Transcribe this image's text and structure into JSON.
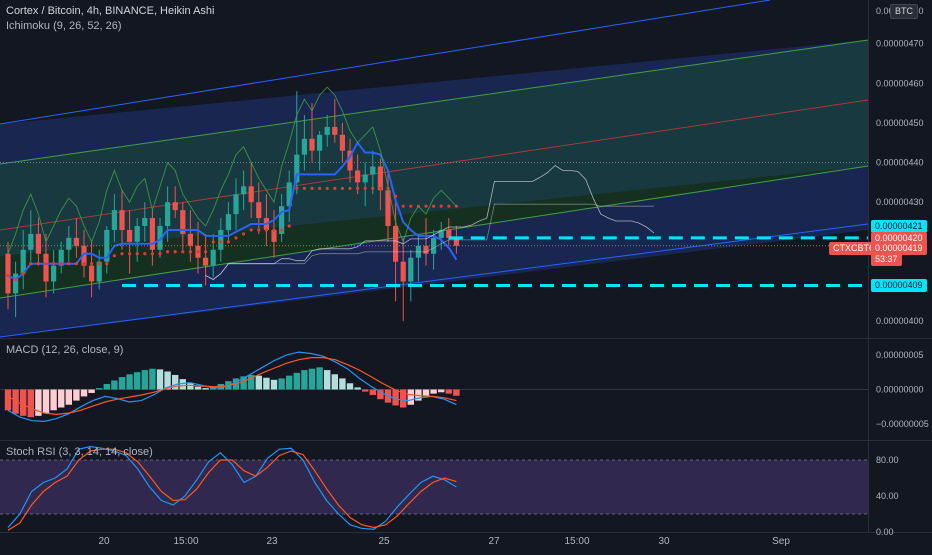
{
  "header": {
    "title": "Cortex / Bitcoin, 4h, BINANCE, Heikin Ashi",
    "indicator": "Ichimoku (9, 26, 52, 26)",
    "currency": "BTC"
  },
  "macd": {
    "label": "MACD (12, 26, close, 9)"
  },
  "rsi": {
    "label": "Stoch RSI (3, 3, 14, 14, close)"
  },
  "price_axis": {
    "top_label": "0.00000480",
    "ticks": [
      "0.00000470",
      "0.00000460",
      "0.00000450",
      "0.00000440",
      "0.00000430",
      "0.00000400"
    ]
  },
  "macd_axis": {
    "ticks": [
      "0.00000005",
      "0.00000000",
      "−0.00000005"
    ]
  },
  "rsi_axis": {
    "ticks": [
      "80.00",
      "40.00",
      "0.00"
    ]
  },
  "badges": {
    "level_upper": "0.00000421",
    "last_price": "0.00000420",
    "symbol": "CTXCBTC",
    "current_price": "0.00000419",
    "countdown": "53:37",
    "level_lower": "0.00000409"
  },
  "x_axis": {
    "labels": [
      "20",
      "15:00",
      "23",
      "25",
      "27",
      "15:00",
      "30",
      "Sep"
    ]
  },
  "colors": {
    "bg": "#131722",
    "up": "#26a69a",
    "down": "#ef5350",
    "cyan": "#00e5ff",
    "tenkan": "#2962ff",
    "kijun": "#e53935",
    "chikou": "#43a047",
    "macd_line": "#2196f3",
    "signal_line": "#ff5722",
    "rsi_k": "#2196f3",
    "rsi_d": "#ff5722",
    "rsi_band": "#7e57c2"
  },
  "chart_data": [
    {
      "type": "candlestick",
      "title": "Cortex / Bitcoin, 4h, BINANCE, Heikin Ashi",
      "y_unit": "BTC",
      "ylim": [
        3.96e-06,
        4.81e-06
      ],
      "x_labels": [
        "20",
        "15:00",
        "23",
        "25",
        "27",
        "15:00",
        "30",
        "Sep"
      ],
      "candles": [
        {
          "o": 4.17,
          "h": 4.2,
          "l": 4.03,
          "c": 4.07
        },
        {
          "o": 4.07,
          "h": 4.15,
          "l": 4.01,
          "c": 4.12
        },
        {
          "o": 4.12,
          "h": 4.23,
          "l": 4.08,
          "c": 4.18
        },
        {
          "o": 4.18,
          "h": 4.28,
          "l": 4.15,
          "c": 4.22
        },
        {
          "o": 4.22,
          "h": 4.26,
          "l": 4.14,
          "c": 4.17
        },
        {
          "o": 4.17,
          "h": 4.22,
          "l": 4.06,
          "c": 4.1
        },
        {
          "o": 4.1,
          "h": 4.18,
          "l": 4.07,
          "c": 4.14
        },
        {
          "o": 4.14,
          "h": 4.2,
          "l": 4.12,
          "c": 4.18
        },
        {
          "o": 4.18,
          "h": 4.24,
          "l": 4.15,
          "c": 4.21
        },
        {
          "o": 4.21,
          "h": 4.26,
          "l": 4.16,
          "c": 4.19
        },
        {
          "o": 4.19,
          "h": 4.23,
          "l": 4.11,
          "c": 4.14
        },
        {
          "o": 4.14,
          "h": 4.2,
          "l": 4.06,
          "c": 4.1
        },
        {
          "o": 4.1,
          "h": 4.18,
          "l": 4.08,
          "c": 4.15
        },
        {
          "o": 4.15,
          "h": 4.24,
          "l": 4.12,
          "c": 4.23
        },
        {
          "o": 4.23,
          "h": 4.32,
          "l": 4.2,
          "c": 4.28
        },
        {
          "o": 4.28,
          "h": 4.33,
          "l": 4.18,
          "c": 4.23
        },
        {
          "o": 4.23,
          "h": 4.28,
          "l": 4.12,
          "c": 4.2
        },
        {
          "o": 4.2,
          "h": 4.26,
          "l": 4.15,
          "c": 4.24
        },
        {
          "o": 4.24,
          "h": 4.3,
          "l": 4.2,
          "c": 4.26
        },
        {
          "o": 4.26,
          "h": 4.28,
          "l": 4.14,
          "c": 4.18
        },
        {
          "o": 4.18,
          "h": 4.26,
          "l": 4.16,
          "c": 4.24
        },
        {
          "o": 4.24,
          "h": 4.34,
          "l": 4.2,
          "c": 4.3
        },
        {
          "o": 4.3,
          "h": 4.34,
          "l": 4.26,
          "c": 4.28
        },
        {
          "o": 4.28,
          "h": 4.3,
          "l": 4.18,
          "c": 4.22
        },
        {
          "o": 4.22,
          "h": 4.28,
          "l": 4.15,
          "c": 4.19
        },
        {
          "o": 4.19,
          "h": 4.25,
          "l": 4.12,
          "c": 4.16
        },
        {
          "o": 4.16,
          "h": 4.22,
          "l": 4.09,
          "c": 4.14
        },
        {
          "o": 4.14,
          "h": 4.22,
          "l": 4.11,
          "c": 4.18
        },
        {
          "o": 4.18,
          "h": 4.26,
          "l": 4.15,
          "c": 4.23
        },
        {
          "o": 4.23,
          "h": 4.3,
          "l": 4.2,
          "c": 4.27
        },
        {
          "o": 4.27,
          "h": 4.36,
          "l": 4.23,
          "c": 4.32
        },
        {
          "o": 4.32,
          "h": 4.38,
          "l": 4.28,
          "c": 4.34
        },
        {
          "o": 4.34,
          "h": 4.4,
          "l": 4.26,
          "c": 4.3
        },
        {
          "o": 4.3,
          "h": 4.35,
          "l": 4.22,
          "c": 4.26
        },
        {
          "o": 4.26,
          "h": 4.32,
          "l": 4.19,
          "c": 4.23
        },
        {
          "o": 4.23,
          "h": 4.28,
          "l": 4.16,
          "c": 4.2
        },
        {
          "o": 4.22,
          "h": 4.32,
          "l": 4.2,
          "c": 4.29
        },
        {
          "o": 4.29,
          "h": 4.38,
          "l": 4.25,
          "c": 4.35
        },
        {
          "o": 4.35,
          "h": 4.58,
          "l": 4.32,
          "c": 4.42
        },
        {
          "o": 4.42,
          "h": 4.52,
          "l": 4.38,
          "c": 4.46
        },
        {
          "o": 4.46,
          "h": 4.55,
          "l": 4.4,
          "c": 4.43
        },
        {
          "o": 4.43,
          "h": 4.48,
          "l": 4.38,
          "c": 4.47
        },
        {
          "o": 4.47,
          "h": 4.52,
          "l": 4.44,
          "c": 4.49
        },
        {
          "o": 4.49,
          "h": 4.56,
          "l": 4.45,
          "c": 4.47
        },
        {
          "o": 4.47,
          "h": 4.5,
          "l": 4.4,
          "c": 4.43
        },
        {
          "o": 4.43,
          "h": 4.46,
          "l": 4.35,
          "c": 4.38
        },
        {
          "o": 4.38,
          "h": 4.42,
          "l": 4.32,
          "c": 4.35
        },
        {
          "o": 4.35,
          "h": 4.4,
          "l": 4.29,
          "c": 4.37
        },
        {
          "o": 4.37,
          "h": 4.43,
          "l": 4.32,
          "c": 4.39
        },
        {
          "o": 4.39,
          "h": 4.41,
          "l": 4.28,
          "c": 4.33
        },
        {
          "o": 4.33,
          "h": 4.37,
          "l": 4.2,
          "c": 4.24
        },
        {
          "o": 4.24,
          "h": 4.31,
          "l": 4.05,
          "c": 4.15
        },
        {
          "o": 4.15,
          "h": 4.21,
          "l": 4.0,
          "c": 4.1
        },
        {
          "o": 4.1,
          "h": 4.18,
          "l": 4.05,
          "c": 4.16
        },
        {
          "o": 4.16,
          "h": 4.22,
          "l": 4.1,
          "c": 4.19
        },
        {
          "o": 4.19,
          "h": 4.26,
          "l": 4.14,
          "c": 4.17
        },
        {
          "o": 4.17,
          "h": 4.23,
          "l": 4.13,
          "c": 4.21
        },
        {
          "o": 4.21,
          "h": 4.25,
          "l": 4.18,
          "c": 4.23
        },
        {
          "o": 4.23,
          "h": 4.26,
          "l": 4.19,
          "c": 4.21
        },
        {
          "o": 4.21,
          "h": 4.24,
          "l": 4.17,
          "c": 4.19
        }
      ],
      "horizontal_levels": [
        4.21e-06,
        4.09e-06
      ]
    },
    {
      "type": "bar",
      "title": "MACD (12, 26, close, 9)",
      "ylim": [
        -7e-08,
        7e-08
      ],
      "histogram": [
        -3,
        -3.5,
        -3.8,
        -4,
        -3.8,
        -3.4,
        -3,
        -2.6,
        -2.2,
        -1.6,
        -1,
        -0.5,
        0.2,
        0.8,
        1.3,
        1.8,
        2.2,
        2.5,
        2.8,
        3,
        2.9,
        2.6,
        2.1,
        1.5,
        0.9,
        0.4,
        0.2,
        0.4,
        0.8,
        1.2,
        1.6,
        1.9,
        2.1,
        2.0,
        1.7,
        1.4,
        1.6,
        2.0,
        2.4,
        2.8,
        3.0,
        3.2,
        2.8,
        2.2,
        1.6,
        0.9,
        0.3,
        -0.3,
        -0.8,
        -1.4,
        -1.9,
        -2.3,
        -2.6,
        -2.2,
        -1.6,
        -1.0,
        -0.6,
        -0.4,
        -0.6,
        -0.9
      ],
      "macd_line": [
        -3,
        -4,
        -4.5,
        -4.6,
        -4.2,
        -3.5,
        -2.5,
        -1.6,
        -1.0,
        -1.3,
        -1.8,
        -1.6,
        -0.8,
        0.2,
        0.8,
        1.0,
        0.6,
        0.2,
        0.4,
        1.2,
        2.2,
        3.2,
        4.2,
        5.0,
        5.4,
        5.2,
        4.8,
        4.0,
        3.0,
        1.6,
        0.4,
        -0.6,
        -1.4,
        -1.6,
        -1.2,
        -1.0,
        -1.4,
        -2.2
      ],
      "signal_line": [
        -1,
        -2,
        -2.8,
        -3.4,
        -3.6,
        -3.4,
        -3.0,
        -2.4,
        -1.8,
        -1.4,
        -1.1,
        -0.8,
        -0.4,
        0.1,
        0.5,
        0.6,
        0.5,
        0.4,
        0.5,
        0.9,
        1.6,
        2.4,
        3.1,
        3.8,
        4.3,
        4.6,
        4.6,
        4.3,
        3.6,
        2.8,
        1.8,
        0.8,
        -0.1,
        -0.7,
        -0.9,
        -1.0,
        -1.2,
        -1.6
      ]
    },
    {
      "type": "line",
      "title": "Stoch RSI (3, 3, 14, 14, close)",
      "ylim": [
        0,
        100
      ],
      "band": [
        20,
        80
      ],
      "series": [
        {
          "values": [
            5,
            20,
            45,
            55,
            60,
            70,
            92,
            95,
            93,
            90,
            85,
            70,
            50,
            35,
            30,
            40,
            58,
            78,
            88,
            75,
            55,
            62,
            82,
            92,
            93,
            80,
            55,
            35,
            20,
            8,
            4,
            3,
            12,
            28,
            42,
            55,
            62,
            58,
            50
          ]
        },
        {
          "values": [
            2,
            10,
            30,
            45,
            55,
            62,
            80,
            90,
            92,
            92,
            88,
            78,
            62,
            45,
            35,
            36,
            48,
            66,
            80,
            80,
            68,
            62,
            72,
            85,
            90,
            86,
            68,
            48,
            30,
            16,
            8,
            5,
            8,
            18,
            32,
            45,
            55,
            60,
            56
          ]
        }
      ]
    }
  ]
}
